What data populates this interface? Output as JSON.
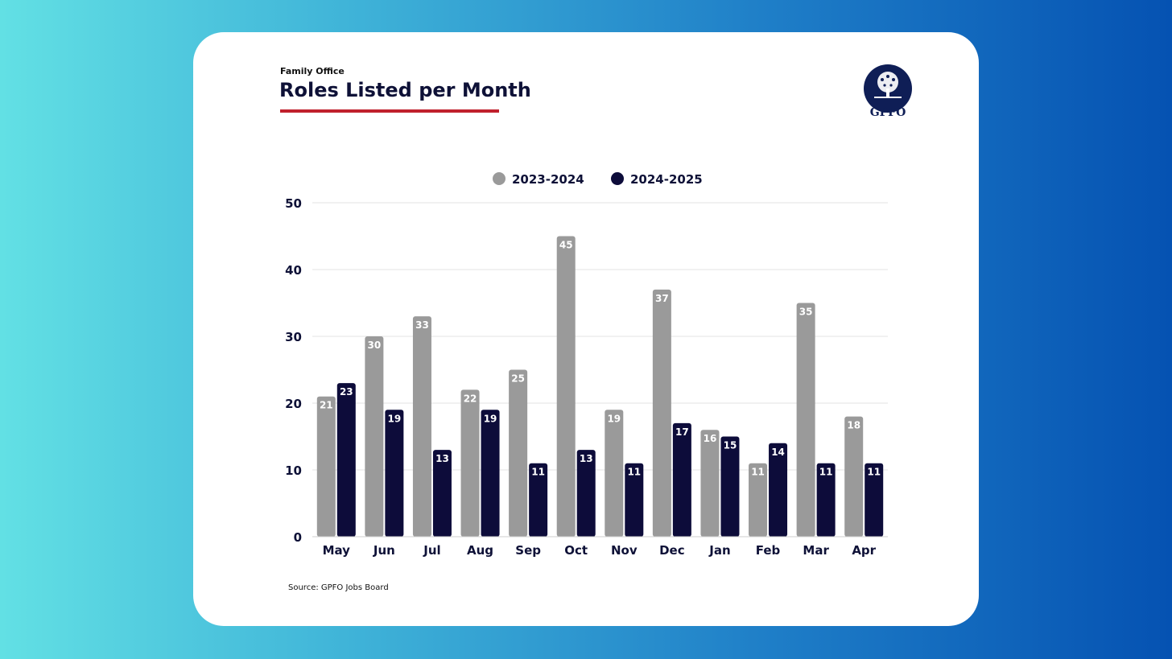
{
  "header": {
    "kicker": "Family Office",
    "title": "Roles Listed per Month"
  },
  "logo": {
    "text": "GPFO",
    "icon": "tree-icon"
  },
  "source": "Source: GPFO Jobs Board",
  "colors": {
    "series_2023": "#9a9a9a",
    "series_2024": "#0d0c3a",
    "title_underline": "#c0202c",
    "text": "#0e1137"
  },
  "chart_data": {
    "type": "bar",
    "title": "Roles Listed per Month",
    "xlabel": "",
    "ylabel": "",
    "ylim": [
      0,
      50
    ],
    "yticks": [
      0,
      10,
      20,
      30,
      40,
      50
    ],
    "grid": true,
    "legend_position": "top-center",
    "categories": [
      "May",
      "Jun",
      "Jul",
      "Aug",
      "Sep",
      "Oct",
      "Nov",
      "Dec",
      "Jan",
      "Feb",
      "Mar",
      "Apr"
    ],
    "series": [
      {
        "name": "2023-2024",
        "color": "#9a9a9a",
        "values": [
          21,
          30,
          33,
          22,
          25,
          45,
          19,
          37,
          16,
          11,
          35,
          18
        ]
      },
      {
        "name": "2024-2025",
        "color": "#0d0c3a",
        "values": [
          23,
          19,
          13,
          19,
          11,
          13,
          11,
          17,
          15,
          14,
          11,
          11
        ]
      }
    ]
  }
}
